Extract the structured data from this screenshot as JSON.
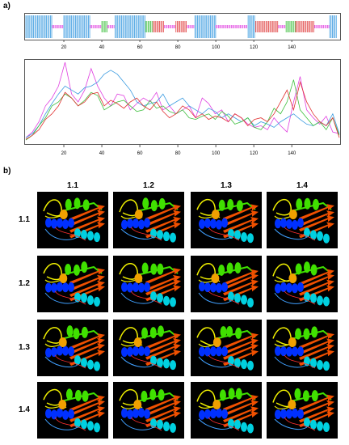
{
  "panel_a": {
    "label": "a)",
    "chart_data": [
      {
        "type": "bar",
        "description_source": "secondary structure track",
        "x_ticks": [
          "20",
          "40",
          "60",
          "80",
          "100",
          "120",
          "140"
        ],
        "segments": [
          {
            "start": 1,
            "end": 14,
            "type": "helix",
            "color": "#3a9be0"
          },
          {
            "start": 15,
            "end": 20,
            "type": "coil",
            "color": "#e040e0"
          },
          {
            "start": 21,
            "end": 34,
            "type": "helix",
            "color": "#3a9be0"
          },
          {
            "start": 35,
            "end": 40,
            "type": "coil",
            "color": "#e040e0"
          },
          {
            "start": 41,
            "end": 43,
            "type": "strand",
            "color": "#40c040"
          },
          {
            "start": 44,
            "end": 47,
            "type": "coil",
            "color": "#e040e0"
          },
          {
            "start": 48,
            "end": 63,
            "type": "helix",
            "color": "#3a9be0"
          },
          {
            "start": 64,
            "end": 67,
            "type": "strand",
            "color": "#40c040"
          },
          {
            "start": 68,
            "end": 73,
            "type": "strand",
            "color": "#e04040"
          },
          {
            "start": 74,
            "end": 79,
            "type": "coil",
            "color": "#e040e0"
          },
          {
            "start": 80,
            "end": 85,
            "type": "strand",
            "color": "#e04040"
          },
          {
            "start": 86,
            "end": 89,
            "type": "coil",
            "color": "#e040e0"
          },
          {
            "start": 90,
            "end": 100,
            "type": "helix",
            "color": "#3a9be0"
          },
          {
            "start": 101,
            "end": 117,
            "type": "coil",
            "color": "#e040e0"
          },
          {
            "start": 118,
            "end": 121,
            "type": "helix",
            "color": "#3a9be0"
          },
          {
            "start": 122,
            "end": 133,
            "type": "strand",
            "color": "#e04040"
          },
          {
            "start": 134,
            "end": 137,
            "type": "coil",
            "color": "#e040e0"
          },
          {
            "start": 138,
            "end": 142,
            "type": "strand",
            "color": "#40c040"
          },
          {
            "start": 143,
            "end": 152,
            "type": "strand",
            "color": "#e04040"
          },
          {
            "start": 153,
            "end": 160,
            "type": "coil",
            "color": "#e040e0"
          },
          {
            "start": 161,
            "end": 164,
            "type": "helix",
            "color": "#3a9be0"
          }
        ],
        "xlim": [
          0,
          165
        ]
      },
      {
        "type": "line",
        "x_ticks": [
          "20",
          "40",
          "60",
          "80",
          "100",
          "120",
          "140"
        ],
        "xlim": [
          0,
          165
        ],
        "ylim": [
          0,
          1
        ],
        "series": [
          {
            "color": "#e040e0",
            "values": [
              0.05,
              0.12,
              0.25,
              0.45,
              0.55,
              0.7,
              1.0,
              0.6,
              0.5,
              0.65,
              0.92,
              0.7,
              0.55,
              0.45,
              0.6,
              0.58,
              0.4,
              0.48,
              0.55,
              0.5,
              0.62,
              0.4,
              0.45,
              0.35,
              0.4,
              0.45,
              0.3,
              0.55,
              0.48,
              0.35,
              0.4,
              0.25,
              0.35,
              0.3,
              0.22,
              0.18,
              0.2,
              0.15,
              0.3,
              0.2,
              0.12,
              0.5,
              0.82,
              0.4,
              0.3,
              0.22,
              0.32,
              0.12,
              0.1
            ]
          },
          {
            "color": "#3a9be0",
            "values": [
              0.05,
              0.1,
              0.2,
              0.35,
              0.48,
              0.6,
              0.7,
              0.65,
              0.6,
              0.68,
              0.7,
              0.75,
              0.85,
              0.9,
              0.85,
              0.75,
              0.65,
              0.5,
              0.45,
              0.48,
              0.5,
              0.6,
              0.45,
              0.5,
              0.55,
              0.45,
              0.4,
              0.35,
              0.42,
              0.38,
              0.3,
              0.35,
              0.3,
              0.25,
              0.3,
              0.2,
              0.25,
              0.22,
              0.18,
              0.25,
              0.3,
              0.35,
              0.28,
              0.22,
              0.2,
              0.25,
              0.2,
              0.35,
              0.1
            ]
          },
          {
            "color": "#40c040",
            "values": [
              0.02,
              0.08,
              0.2,
              0.3,
              0.45,
              0.5,
              0.6,
              0.55,
              0.45,
              0.52,
              0.62,
              0.58,
              0.4,
              0.45,
              0.5,
              0.52,
              0.45,
              0.38,
              0.4,
              0.52,
              0.42,
              0.45,
              0.38,
              0.35,
              0.4,
              0.3,
              0.28,
              0.32,
              0.35,
              0.28,
              0.38,
              0.32,
              0.22,
              0.25,
              0.3,
              0.18,
              0.15,
              0.25,
              0.42,
              0.35,
              0.5,
              0.78,
              0.4,
              0.3,
              0.2,
              0.25,
              0.15,
              0.3,
              0.08
            ]
          },
          {
            "color": "#e03030",
            "values": [
              0.03,
              0.08,
              0.15,
              0.28,
              0.35,
              0.45,
              0.62,
              0.55,
              0.45,
              0.5,
              0.6,
              0.62,
              0.45,
              0.52,
              0.48,
              0.42,
              0.5,
              0.55,
              0.45,
              0.4,
              0.5,
              0.38,
              0.3,
              0.35,
              0.45,
              0.4,
              0.3,
              0.35,
              0.28,
              0.32,
              0.3,
              0.25,
              0.35,
              0.3,
              0.2,
              0.28,
              0.3,
              0.25,
              0.35,
              0.5,
              0.65,
              0.4,
              0.75,
              0.5,
              0.35,
              0.25,
              0.2,
              0.3,
              0.05
            ]
          }
        ]
      }
    ]
  },
  "panel_b": {
    "label": "b)",
    "col_labels": [
      "1.1",
      "1.2",
      "1.3",
      "1.4"
    ],
    "row_labels": [
      "1.1",
      "1.2",
      "1.3",
      "1.4"
    ],
    "background": "#000000",
    "ribbon_colors": [
      "#f0f000",
      "#40e000",
      "#f05000",
      "#0030ff",
      "#00d0e0",
      "#f0a000"
    ]
  }
}
